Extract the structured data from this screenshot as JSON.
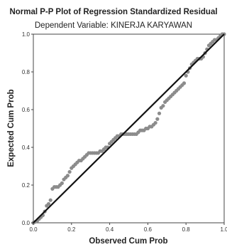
{
  "chart_data": {
    "type": "scatter",
    "title": "Normal P-P Plot of Regression Standardized Residual",
    "subtitle": "Dependent Variable: KINERJA KARYAWAN",
    "xlabel": "Observed Cum Prob",
    "ylabel": "Expected Cum Prob",
    "xlim": [
      0,
      1
    ],
    "ylim": [
      0,
      1
    ],
    "x_ticks": [
      "0.0",
      "0.2",
      "0.4",
      "0.6",
      "0.8",
      "1.0"
    ],
    "y_ticks": [
      "0.0",
      "0.2",
      "0.4",
      "0.6",
      "0.8",
      "1.0"
    ],
    "grid": false,
    "reference_line": {
      "from": [
        0,
        0
      ],
      "to": [
        1,
        1
      ],
      "color": "#111111"
    },
    "point_color": "#8c8c8c",
    "series": [
      {
        "points": [
          [
            0.0,
            0.0
          ],
          [
            0.01,
            0.005
          ],
          [
            0.02,
            0.01
          ],
          [
            0.03,
            0.02
          ],
          [
            0.04,
            0.03
          ],
          [
            0.05,
            0.04
          ],
          [
            0.06,
            0.06
          ],
          [
            0.07,
            0.09
          ],
          [
            0.08,
            0.1
          ],
          [
            0.09,
            0.12
          ],
          [
            0.1,
            0.18
          ],
          [
            0.11,
            0.19
          ],
          [
            0.12,
            0.19
          ],
          [
            0.13,
            0.19
          ],
          [
            0.14,
            0.2
          ],
          [
            0.15,
            0.21
          ],
          [
            0.16,
            0.23
          ],
          [
            0.17,
            0.24
          ],
          [
            0.18,
            0.25
          ],
          [
            0.19,
            0.27
          ],
          [
            0.2,
            0.29
          ],
          [
            0.21,
            0.3
          ],
          [
            0.22,
            0.31
          ],
          [
            0.23,
            0.32
          ],
          [
            0.24,
            0.33
          ],
          [
            0.25,
            0.33
          ],
          [
            0.26,
            0.34
          ],
          [
            0.27,
            0.35
          ],
          [
            0.28,
            0.36
          ],
          [
            0.29,
            0.37
          ],
          [
            0.3,
            0.37
          ],
          [
            0.31,
            0.37
          ],
          [
            0.32,
            0.37
          ],
          [
            0.33,
            0.37
          ],
          [
            0.34,
            0.37
          ],
          [
            0.35,
            0.38
          ],
          [
            0.36,
            0.38
          ],
          [
            0.37,
            0.39
          ],
          [
            0.38,
            0.4
          ],
          [
            0.39,
            0.4
          ],
          [
            0.4,
            0.42
          ],
          [
            0.41,
            0.43
          ],
          [
            0.42,
            0.44
          ],
          [
            0.43,
            0.45
          ],
          [
            0.44,
            0.46
          ],
          [
            0.45,
            0.46
          ],
          [
            0.46,
            0.47
          ],
          [
            0.47,
            0.47
          ],
          [
            0.48,
            0.47
          ],
          [
            0.49,
            0.47
          ],
          [
            0.5,
            0.47
          ],
          [
            0.51,
            0.47
          ],
          [
            0.52,
            0.47
          ],
          [
            0.53,
            0.47
          ],
          [
            0.54,
            0.47
          ],
          [
            0.55,
            0.48
          ],
          [
            0.56,
            0.49
          ],
          [
            0.57,
            0.49
          ],
          [
            0.58,
            0.49
          ],
          [
            0.59,
            0.5
          ],
          [
            0.6,
            0.5
          ],
          [
            0.61,
            0.51
          ],
          [
            0.62,
            0.51
          ],
          [
            0.63,
            0.52
          ],
          [
            0.64,
            0.53
          ],
          [
            0.65,
            0.55
          ],
          [
            0.66,
            0.58
          ],
          [
            0.67,
            0.61
          ],
          [
            0.68,
            0.62
          ],
          [
            0.69,
            0.64
          ],
          [
            0.7,
            0.65
          ],
          [
            0.71,
            0.66
          ],
          [
            0.72,
            0.67
          ],
          [
            0.73,
            0.68
          ],
          [
            0.74,
            0.69
          ],
          [
            0.75,
            0.7
          ],
          [
            0.76,
            0.71
          ],
          [
            0.77,
            0.72
          ],
          [
            0.78,
            0.73
          ],
          [
            0.79,
            0.74
          ],
          [
            0.8,
            0.78
          ],
          [
            0.81,
            0.8
          ],
          [
            0.82,
            0.82
          ],
          [
            0.83,
            0.84
          ],
          [
            0.84,
            0.85
          ],
          [
            0.85,
            0.86
          ],
          [
            0.86,
            0.87
          ],
          [
            0.87,
            0.87
          ],
          [
            0.88,
            0.87
          ],
          [
            0.89,
            0.88
          ],
          [
            0.9,
            0.9
          ],
          [
            0.91,
            0.92
          ],
          [
            0.92,
            0.94
          ],
          [
            0.93,
            0.95
          ],
          [
            0.94,
            0.96
          ],
          [
            0.95,
            0.97
          ],
          [
            0.96,
            0.97
          ],
          [
            0.97,
            0.98
          ],
          [
            0.98,
            0.99
          ],
          [
            0.99,
            1.0
          ],
          [
            1.0,
            1.0
          ]
        ]
      }
    ]
  }
}
